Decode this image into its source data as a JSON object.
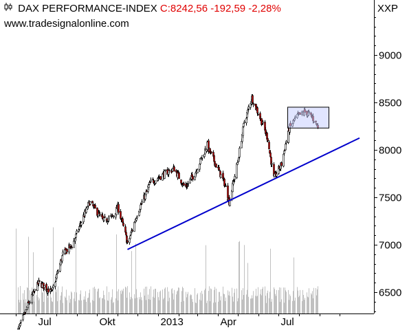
{
  "header": {
    "chart_icon": "candlestick-symbol-icon",
    "name": "DAX PERFORMANCE-INDEX",
    "quote": "C:8242,56 -192,59 -2,28%",
    "site": "www.tradesignalonline.com",
    "exchange": "XXP"
  },
  "colors": {
    "up_candle": "#ffffff",
    "down_candle": "#c00000",
    "volume": "#c0c0c0",
    "trendline": "#0000cc",
    "box_fill": "#c8d0ff",
    "quote_text": "#e00000"
  },
  "chart_data": {
    "type": "candlestick",
    "title": "DAX PERFORMANCE-INDEX",
    "x_ticks": [
      "Jul",
      "Okt",
      "2013",
      "Apr",
      "Jul"
    ],
    "y_ticks": [
      6500,
      7000,
      7500,
      8000,
      8500,
      9000
    ],
    "ylim": [
      6300,
      9500
    ],
    "grid": false,
    "y_axis_side": "right",
    "price_path": [
      {
        "date": "2012-06-01",
        "value": 6050
      },
      {
        "date": "2012-06-15",
        "value": 6300
      },
      {
        "date": "2012-07-05",
        "value": 6600
      },
      {
        "date": "2012-07-25",
        "value": 6500
      },
      {
        "date": "2012-08-10",
        "value": 6900
      },
      {
        "date": "2012-08-25",
        "value": 7000
      },
      {
        "date": "2012-09-10",
        "value": 7300
      },
      {
        "date": "2012-09-20",
        "value": 7450
      },
      {
        "date": "2012-10-10",
        "value": 7250
      },
      {
        "date": "2012-10-25",
        "value": 7300
      },
      {
        "date": "2012-11-01",
        "value": 7400
      },
      {
        "date": "2012-11-16",
        "value": 7000
      },
      {
        "date": "2012-12-01",
        "value": 7350
      },
      {
        "date": "2012-12-20",
        "value": 7650
      },
      {
        "date": "2013-01-10",
        "value": 7750
      },
      {
        "date": "2013-01-25",
        "value": 7800
      },
      {
        "date": "2013-02-10",
        "value": 7600
      },
      {
        "date": "2013-02-25",
        "value": 7750
      },
      {
        "date": "2013-03-15",
        "value": 8050
      },
      {
        "date": "2013-03-25",
        "value": 7900
      },
      {
        "date": "2013-04-10",
        "value": 7650
      },
      {
        "date": "2013-04-18",
        "value": 7450
      },
      {
        "date": "2013-05-01",
        "value": 7900
      },
      {
        "date": "2013-05-10",
        "value": 8300
      },
      {
        "date": "2013-05-22",
        "value": 8550
      },
      {
        "date": "2013-06-05",
        "value": 8300
      },
      {
        "date": "2013-06-15",
        "value": 8100
      },
      {
        "date": "2013-06-24",
        "value": 7700
      },
      {
        "date": "2013-07-05",
        "value": 7850
      },
      {
        "date": "2013-07-15",
        "value": 8200
      },
      {
        "date": "2013-07-28",
        "value": 8350
      },
      {
        "date": "2013-08-10",
        "value": 8400
      },
      {
        "date": "2013-08-20",
        "value": 8350
      },
      {
        "date": "2013-08-29",
        "value": 8243
      }
    ],
    "support_line": {
      "start": {
        "date": "2012-11-16",
        "value": 6950
      },
      "end": {
        "date": "2013-10-31",
        "value": 8125
      }
    },
    "range_box": {
      "date_start": "2013-07-15",
      "date_end": "2013-09-15",
      "low": 8230,
      "high": 8450
    },
    "volume_shown": true
  }
}
